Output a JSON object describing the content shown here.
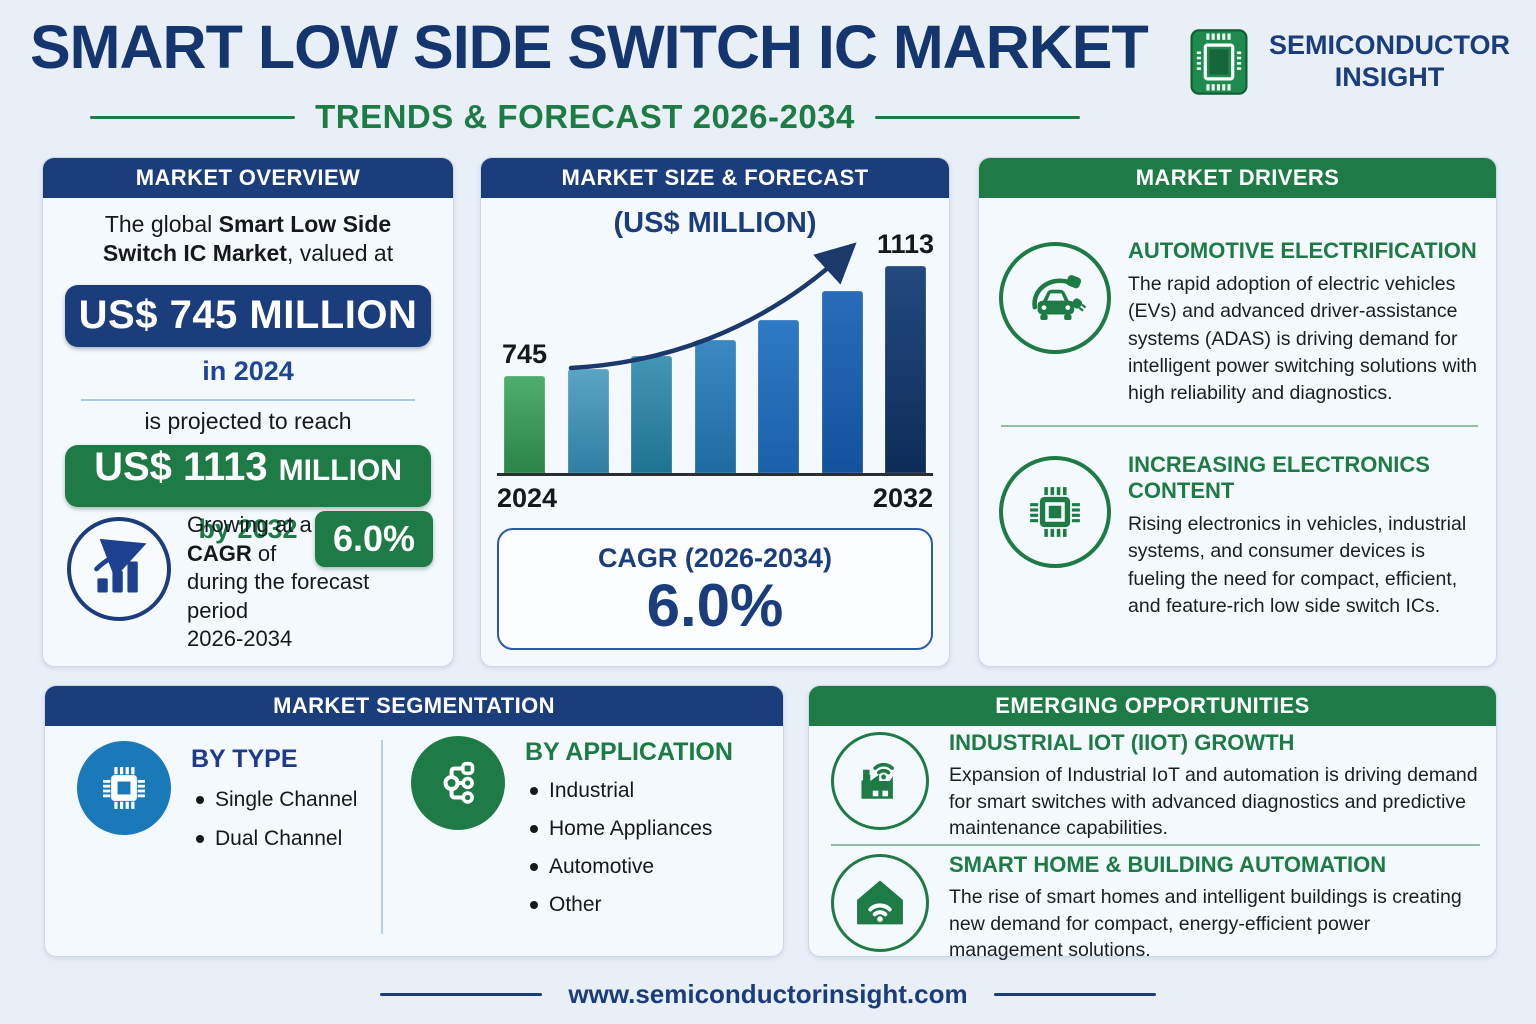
{
  "header": {
    "title": "SMART LOW SIDE SWITCH IC MARKET",
    "subtitle": "TRENDS & FORECAST 2026-2034",
    "brand_line1": "SEMICONDUCTOR",
    "brand_line2": "INSIGHT"
  },
  "colors": {
    "title_navy": "#14356e",
    "navy": "#1c3d7c",
    "green": "#1e7b45",
    "accent_blue": "#1e4494",
    "page_bg": "#e9eff7",
    "card_bg": "#f4f9fd",
    "divider_blue": "#a9c7e6",
    "divider_green": "#8fbfa3",
    "axis_text": "#15181e",
    "blue_circle": "#1a79b8"
  },
  "icons": {
    "brand": "chip-logo-icon",
    "overview_cagr": "growth-trend-icon",
    "driver_1": "ev-car-charging-icon",
    "driver_2": "microchip-icon",
    "segmentation_type": "microchip-icon",
    "segmentation_application": "network-branch-icon",
    "opportunity_1": "factory-wifi-icon",
    "opportunity_2": "smart-home-wifi-icon"
  },
  "overview": {
    "header": "MARKET OVERVIEW",
    "intro_line1_prefix": "The global ",
    "intro_line1_bold": "Smart Low Side",
    "intro_line2_bold": "Switch IC Market",
    "intro_line2_suffix": ", valued at",
    "value_2024": "US$ 745 MILLION",
    "value_2024_caption": "in 2024",
    "projection_lead": "is projected to reach",
    "value_2032_main": "US$ 1113",
    "value_2032_unit": "MILLION",
    "value_2032_caption": "by 2032",
    "cagr_line1": "Growing at a",
    "cagr_bold": "CAGR",
    "cagr_line2_suffix": " of",
    "cagr_value": "6.0%",
    "cagr_line3": "during the forecast period",
    "cagr_line4": "2026-2034"
  },
  "forecast": {
    "header": "MARKET SIZE & FORECAST",
    "unit_label": "(US$ MILLION)",
    "cagr_title": "CAGR (2026-2034)",
    "cagr_value": "6.0%"
  },
  "chart_data": {
    "type": "bar",
    "title": "MARKET SIZE & FORECAST",
    "subtitle": "(US$ MILLION)",
    "categories": [
      "2024",
      "",
      "",
      "",
      "",
      "",
      "2032"
    ],
    "values": [
      745,
      770,
      812,
      866,
      934,
      1030,
      1113
    ],
    "values_estimated": [
      false,
      true,
      true,
      true,
      true,
      true,
      false
    ],
    "bar_labels": [
      "745",
      "",
      "",
      "",
      "",
      "",
      "1113"
    ],
    "x_tick_labels": [
      "2024",
      "2032"
    ],
    "ylabel": "US$ Million",
    "ylim": [
      0,
      1200
    ],
    "grid": false,
    "legend": false,
    "trend_arrow": true,
    "bar_colors": [
      [
        "#4fae6e",
        "#2c8448"
      ],
      [
        "#5ba4c6",
        "#2f7fa3"
      ],
      [
        "#4496b6",
        "#1f7392"
      ],
      [
        "#3b89c2",
        "#1e6ba1"
      ],
      [
        "#2f7ac4",
        "#1a60a8"
      ],
      [
        "#2a6cba",
        "#13519b"
      ],
      [
        "#24497f",
        "#0d2c58"
      ]
    ]
  },
  "drivers": {
    "header": "MARKET DRIVERS",
    "items": [
      {
        "title": "AUTOMOTIVE ELECTRIFICATION",
        "text": "The rapid adoption of electric vehicles (EVs) and advanced driver-assistance systems (ADAS) is driving demand for intelligent power switching solutions with high reliability and diagnostics."
      },
      {
        "title": "INCREASING ELECTRONICS CONTENT",
        "text": "Rising electronics in vehicles, industrial systems, and consumer devices is fueling the need for compact, efficient, and feature-rich low side switch ICs."
      }
    ]
  },
  "segmentation": {
    "header": "MARKET SEGMENTATION",
    "by_type": {
      "title": "BY TYPE",
      "items": [
        "Single Channel",
        "Dual Channel"
      ]
    },
    "by_application": {
      "title": "BY APPLICATION",
      "items": [
        "Industrial",
        "Home Appliances",
        "Automotive",
        "Other"
      ]
    }
  },
  "opportunities": {
    "header": "EMERGING OPPORTUNITIES",
    "items": [
      {
        "title": "INDUSTRIAL IOT (IIOT) GROWTH",
        "text": "Expansion of Industrial IoT and automation is driving demand for smart switches with advanced diagnostics and predictive maintenance capabilities."
      },
      {
        "title": "SMART HOME & BUILDING AUTOMATION",
        "text": "The rise of smart homes and intelligent buildings is creating new demand for compact, energy-efficient power management solutions."
      }
    ]
  },
  "footer": {
    "url": "www.semiconductorinsight.com"
  }
}
